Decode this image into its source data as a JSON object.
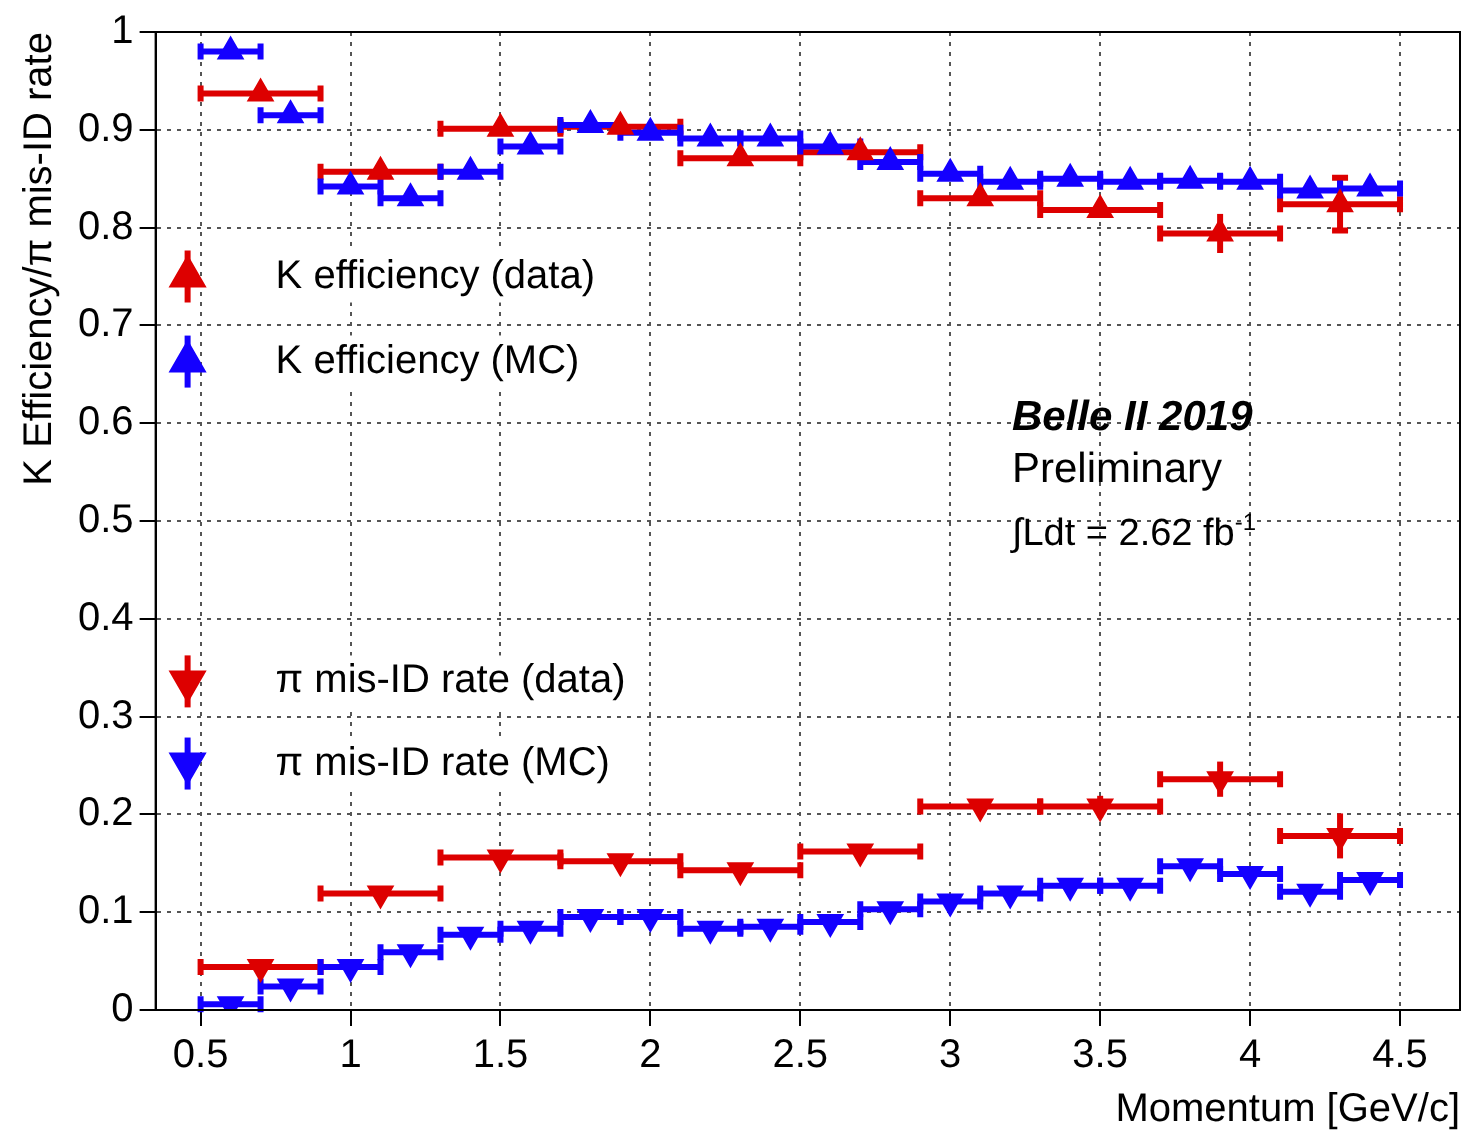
{
  "chart_data": {
    "type": "scatter",
    "xlabel": "Momentum [GeV/c]",
    "ylabel": "K Efficiency/π mis-ID rate",
    "xlim": [
      0.35,
      4.7
    ],
    "xticks": [
      0.5,
      1,
      1.5,
      2,
      2.5,
      3,
      3.5,
      4,
      4.5
    ],
    "ylim": [
      0,
      1
    ],
    "yticks": [
      0,
      0.1,
      0.2,
      0.3,
      0.4,
      0.5,
      0.6,
      0.7,
      0.8,
      0.9,
      1
    ],
    "grid": true,
    "legend": "left",
    "annotations": [
      "Belle II 2019",
      "Preliminary",
      "∫Ldt = 2.62 fb$^{-1}$"
    ],
    "series": [
      {
        "name": "K efficiency (data)",
        "color": "#dd0000",
        "marker": "triangle",
        "x": [
          0.7,
          1.1,
          1.5,
          1.9,
          2.3,
          2.7,
          3.1,
          3.5,
          3.9,
          4.3
        ],
        "values": [
          0.937,
          0.857,
          0.901,
          0.903,
          0.871,
          0.877,
          0.83,
          0.818,
          0.794,
          0.824
        ],
        "xerrors": [
          0.2,
          0.2,
          0.2,
          0.2,
          0.2,
          0.2,
          0.2,
          0.2,
          0.2,
          0.2
        ],
        "errors": [
          null,
          null,
          null,
          null,
          null,
          null,
          null,
          null,
          0.02,
          0.027
        ]
      },
      {
        "name": "K efficiency (MC)",
        "color": "#1400ff",
        "marker": "triangle",
        "x": [
          0.6,
          0.8,
          1.0,
          1.2,
          1.4,
          1.6,
          1.8,
          2.0,
          2.2,
          2.4,
          2.6,
          2.8,
          3.0,
          3.2,
          3.4,
          3.6,
          3.8,
          4.0,
          4.2,
          4.4
        ],
        "values": [
          0.98,
          0.915,
          0.842,
          0.83,
          0.857,
          0.883,
          0.905,
          0.897,
          0.891,
          0.891,
          0.883,
          0.867,
          0.855,
          0.847,
          0.85,
          0.847,
          0.848,
          0.847,
          0.838,
          0.84
        ],
        "xerrors": [
          0.1,
          0.1,
          0.1,
          0.1,
          0.1,
          0.1,
          0.1,
          0.1,
          0.1,
          0.1,
          0.1,
          0.1,
          0.1,
          0.1,
          0.1,
          0.1,
          0.1,
          0.1,
          0.1,
          0.1
        ]
      },
      {
        "name": "π mis-ID rate (data)",
        "color": "#dd0000",
        "marker": "triangle-down",
        "x": [
          0.7,
          1.1,
          1.5,
          1.9,
          2.3,
          2.7,
          3.1,
          3.5,
          3.9,
          4.3
        ],
        "values": [
          0.044,
          0.119,
          0.156,
          0.152,
          0.143,
          0.162,
          0.208,
          0.208,
          0.236,
          0.178
        ],
        "xerrors": [
          0.2,
          0.2,
          0.2,
          0.2,
          0.2,
          0.2,
          0.2,
          0.2,
          0.2,
          0.2
        ],
        "errors": [
          null,
          null,
          null,
          null,
          null,
          null,
          null,
          0.011,
          0.018,
          0.023
        ]
      },
      {
        "name": "π mis-ID rate (MC)",
        "color": "#1400ff",
        "marker": "triangle-down",
        "x": [
          0.6,
          0.8,
          1.0,
          1.2,
          1.4,
          1.6,
          1.8,
          2.0,
          2.2,
          2.4,
          2.6,
          2.8,
          3.0,
          3.2,
          3.4,
          3.6,
          3.8,
          4.0,
          4.2,
          4.4
        ],
        "values": [
          0.006,
          0.024,
          0.044,
          0.059,
          0.077,
          0.083,
          0.095,
          0.095,
          0.083,
          0.085,
          0.09,
          0.103,
          0.111,
          0.119,
          0.127,
          0.127,
          0.147,
          0.139,
          0.121,
          0.133
        ],
        "xerrors": [
          0.1,
          0.1,
          0.1,
          0.1,
          0.1,
          0.1,
          0.1,
          0.1,
          0.1,
          0.1,
          0.1,
          0.1,
          0.1,
          0.1,
          0.1,
          0.1,
          0.1,
          0.1,
          0.1,
          0.1
        ]
      }
    ]
  }
}
